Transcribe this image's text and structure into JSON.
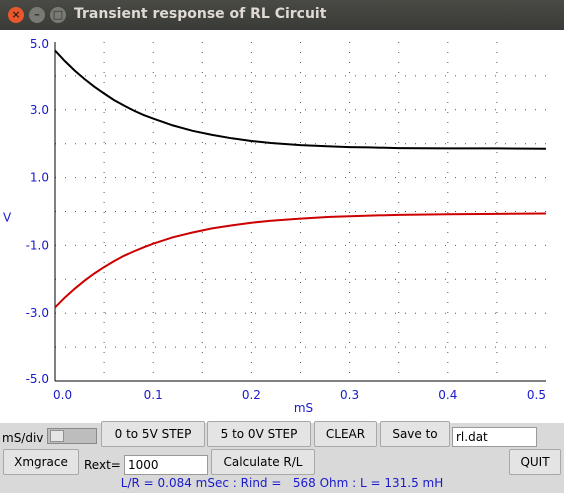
{
  "window": {
    "title": "Transient response of RL Circuit"
  },
  "chart_data": {
    "type": "line",
    "xlabel": "mS",
    "ylabel": "V",
    "xlim": [
      0.0,
      0.5
    ],
    "ylim": [
      -5.0,
      5.0
    ],
    "x_ticks": [
      "0.0",
      "0.1",
      "0.2",
      "0.3",
      "0.4",
      "0.5"
    ],
    "y_ticks": [
      "5.0",
      "3.0",
      "1.0",
      "-1.0",
      "-3.0",
      "-5.0"
    ],
    "grid": true,
    "series": [
      {
        "color": "#000000",
        "x": [
          0.0,
          0.01,
          0.02,
          0.03,
          0.04,
          0.05,
          0.06,
          0.07,
          0.08,
          0.09,
          0.1,
          0.12,
          0.14,
          0.16,
          0.18,
          0.2,
          0.22,
          0.25,
          0.28,
          0.3,
          0.32,
          0.35,
          0.4,
          0.45,
          0.5
        ],
        "y": [
          4.75,
          4.44,
          4.16,
          3.91,
          3.68,
          3.48,
          3.29,
          3.13,
          2.98,
          2.85,
          2.74,
          2.54,
          2.38,
          2.26,
          2.16,
          2.08,
          2.02,
          1.96,
          1.92,
          1.9,
          1.89,
          1.87,
          1.86,
          1.86,
          1.85
        ]
      },
      {
        "color": "#cc0000",
        "x": [
          0.0,
          0.01,
          0.02,
          0.03,
          0.04,
          0.05,
          0.06,
          0.07,
          0.08,
          0.09,
          0.1,
          0.12,
          0.14,
          0.16,
          0.18,
          0.2,
          0.22,
          0.25,
          0.28,
          0.3,
          0.32,
          0.35,
          0.4,
          0.45,
          0.5
        ],
        "y": [
          -2.83,
          -2.54,
          -2.28,
          -2.04,
          -1.83,
          -1.64,
          -1.47,
          -1.31,
          -1.18,
          -1.06,
          -0.95,
          -0.76,
          -0.62,
          -0.5,
          -0.41,
          -0.33,
          -0.27,
          -0.21,
          -0.16,
          -0.14,
          -0.12,
          -0.1,
          -0.08,
          -0.07,
          -0.06
        ]
      }
    ]
  },
  "controls": {
    "msdiv_label": "mS/div",
    "step_up_label": "0 to 5V STEP",
    "step_down_label": "5 to 0V STEP",
    "clear_label": "CLEAR",
    "save_label": "Save to",
    "filename_value": "rl.dat",
    "xmgrace_label": "Xmgrace",
    "rext_label": "Rext=",
    "rext_value": "1000",
    "calculate_label": "Calculate R/L",
    "quit_label": "QUIT"
  },
  "status": {
    "text": "L/R = 0.084 mSec : Rind =   568 Ohm : L = 131.5 mH"
  }
}
